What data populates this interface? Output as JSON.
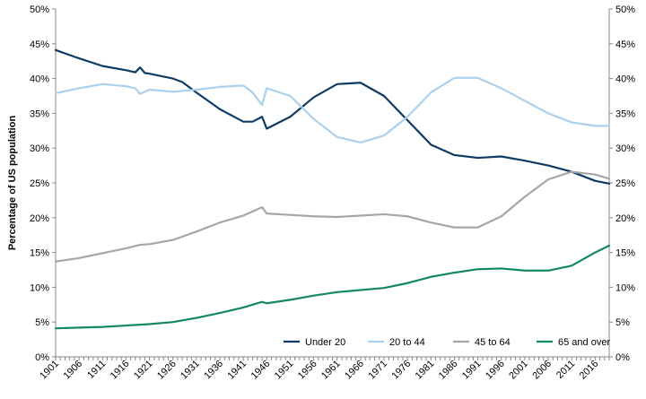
{
  "chart_data": {
    "type": "line",
    "ylabel": "Percentage of US population",
    "xlabel": "",
    "x_tick_labels": [
      "1901",
      "1906",
      "1911",
      "1916",
      "1921",
      "1926",
      "1931",
      "1936",
      "1941",
      "1946",
      "1951",
      "1956",
      "1961",
      "1966",
      "1971",
      "1976",
      "1981",
      "1986",
      "1991",
      "1996",
      "2001",
      "2006",
      "2011",
      "2016"
    ],
    "y_tick_labels": [
      "0%",
      "5%",
      "10%",
      "15%",
      "20%",
      "25%",
      "30%",
      "35%",
      "40%",
      "45%",
      "50%"
    ],
    "xlim": [
      1901,
      2019
    ],
    "ylim": [
      0,
      50
    ],
    "grid": false,
    "legend_position": "bottom-right",
    "colors": {
      "Under 20": "#0d3b66",
      "20 to 44": "#a9d1ee",
      "45 to 64": "#a6a6a6",
      "65 and over": "#15895a"
    },
    "series": [
      {
        "name": "Under 20",
        "points": [
          [
            1901,
            44.1
          ],
          [
            1906,
            42.9
          ],
          [
            1911,
            41.8
          ],
          [
            1916,
            41.2
          ],
          [
            1918,
            40.9
          ],
          [
            1919,
            41.6
          ],
          [
            1920,
            40.8
          ],
          [
            1921,
            40.7
          ],
          [
            1926,
            40.0
          ],
          [
            1928,
            39.5
          ],
          [
            1931,
            38.0
          ],
          [
            1936,
            35.6
          ],
          [
            1941,
            33.8
          ],
          [
            1943,
            33.8
          ],
          [
            1945,
            34.5
          ],
          [
            1946,
            32.8
          ],
          [
            1951,
            34.5
          ],
          [
            1956,
            37.3
          ],
          [
            1961,
            39.2
          ],
          [
            1966,
            39.4
          ],
          [
            1971,
            37.5
          ],
          [
            1976,
            34.0
          ],
          [
            1981,
            30.5
          ],
          [
            1986,
            29.0
          ],
          [
            1991,
            28.6
          ],
          [
            1996,
            28.8
          ],
          [
            2001,
            28.2
          ],
          [
            2006,
            27.5
          ],
          [
            2011,
            26.6
          ],
          [
            2016,
            25.3
          ],
          [
            2019,
            24.9
          ]
        ]
      },
      {
        "name": "20 to 44",
        "points": [
          [
            1901,
            37.9
          ],
          [
            1906,
            38.6
          ],
          [
            1911,
            39.2
          ],
          [
            1916,
            38.9
          ],
          [
            1918,
            38.6
          ],
          [
            1919,
            37.8
          ],
          [
            1921,
            38.4
          ],
          [
            1926,
            38.1
          ],
          [
            1931,
            38.4
          ],
          [
            1936,
            38.8
          ],
          [
            1941,
            39.0
          ],
          [
            1943,
            38.0
          ],
          [
            1945,
            36.2
          ],
          [
            1946,
            38.6
          ],
          [
            1951,
            37.5
          ],
          [
            1956,
            34.2
          ],
          [
            1961,
            31.6
          ],
          [
            1966,
            30.8
          ],
          [
            1971,
            31.8
          ],
          [
            1976,
            34.5
          ],
          [
            1981,
            38.0
          ],
          [
            1986,
            40.1
          ],
          [
            1991,
            40.1
          ],
          [
            1996,
            38.6
          ],
          [
            2001,
            36.8
          ],
          [
            2006,
            35.0
          ],
          [
            2011,
            33.7
          ],
          [
            2016,
            33.2
          ],
          [
            2019,
            33.2
          ]
        ]
      },
      {
        "name": "45 to 64",
        "points": [
          [
            1901,
            13.7
          ],
          [
            1906,
            14.2
          ],
          [
            1911,
            14.9
          ],
          [
            1916,
            15.6
          ],
          [
            1919,
            16.1
          ],
          [
            1921,
            16.2
          ],
          [
            1926,
            16.8
          ],
          [
            1931,
            18.0
          ],
          [
            1936,
            19.3
          ],
          [
            1941,
            20.3
          ],
          [
            1945,
            21.5
          ],
          [
            1946,
            20.6
          ],
          [
            1951,
            20.4
          ],
          [
            1956,
            20.2
          ],
          [
            1961,
            20.1
          ],
          [
            1966,
            20.3
          ],
          [
            1971,
            20.5
          ],
          [
            1976,
            20.2
          ],
          [
            1981,
            19.3
          ],
          [
            1986,
            18.6
          ],
          [
            1991,
            18.6
          ],
          [
            1996,
            20.2
          ],
          [
            2001,
            23.0
          ],
          [
            2006,
            25.5
          ],
          [
            2011,
            26.6
          ],
          [
            2016,
            26.2
          ],
          [
            2019,
            25.6
          ]
        ]
      },
      {
        "name": "65 and over",
        "points": [
          [
            1901,
            4.1
          ],
          [
            1906,
            4.2
          ],
          [
            1911,
            4.3
          ],
          [
            1916,
            4.5
          ],
          [
            1921,
            4.7
          ],
          [
            1926,
            5.0
          ],
          [
            1931,
            5.6
          ],
          [
            1936,
            6.3
          ],
          [
            1941,
            7.1
          ],
          [
            1945,
            7.9
          ],
          [
            1946,
            7.7
          ],
          [
            1951,
            8.2
          ],
          [
            1956,
            8.8
          ],
          [
            1961,
            9.3
          ],
          [
            1966,
            9.6
          ],
          [
            1971,
            9.9
          ],
          [
            1976,
            10.6
          ],
          [
            1981,
            11.5
          ],
          [
            1986,
            12.1
          ],
          [
            1991,
            12.6
          ],
          [
            1996,
            12.7
          ],
          [
            2001,
            12.4
          ],
          [
            2006,
            12.4
          ],
          [
            2011,
            13.1
          ],
          [
            2016,
            15.0
          ],
          [
            2019,
            16.0
          ]
        ]
      }
    ]
  }
}
